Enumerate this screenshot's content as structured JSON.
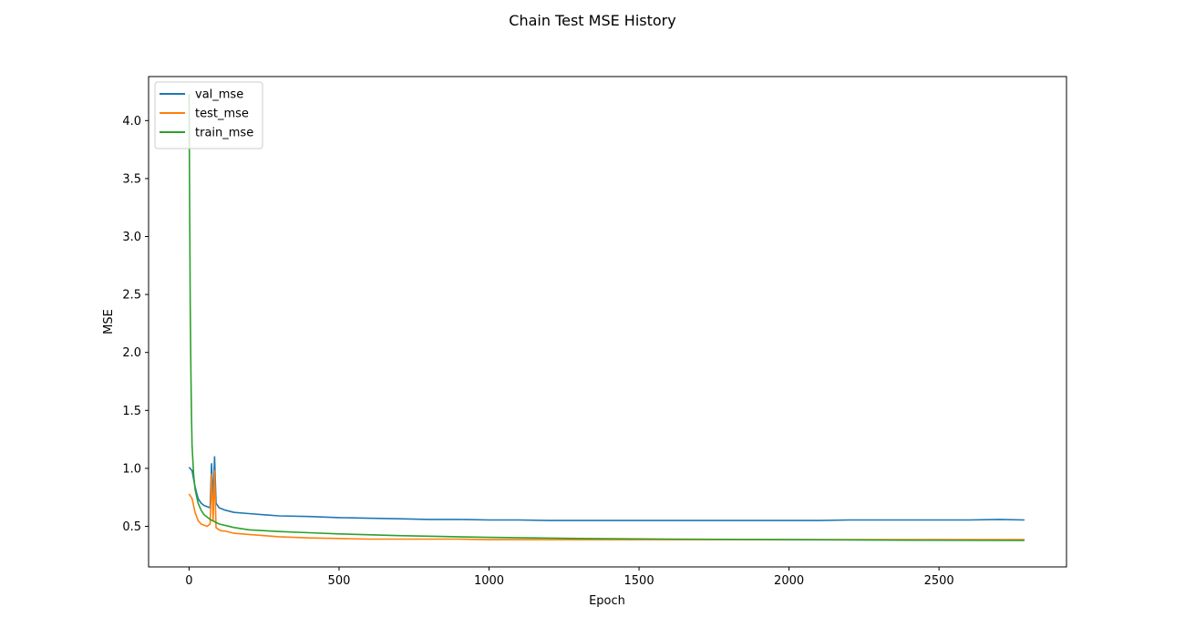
{
  "chart_data": {
    "type": "line",
    "title": "Chain Test MSE History",
    "xlabel": "Epoch",
    "ylabel": "MSE",
    "xlim": [
      -135,
      2925
    ],
    "ylim": [
      0.15,
      4.38
    ],
    "x_ticks": [
      0,
      500,
      1000,
      1500,
      2000,
      2500
    ],
    "y_ticks": [
      0.5,
      1.0,
      1.5,
      2.0,
      2.5,
      3.0,
      3.5,
      4.0
    ],
    "x_tick_labels": [
      "0",
      "500",
      "1000",
      "1500",
      "2000",
      "2500"
    ],
    "y_tick_labels": [
      "0.5",
      "1.0",
      "1.5",
      "2.0",
      "2.5",
      "3.0",
      "3.5",
      "4.0"
    ],
    "grid": false,
    "legend_position": "upper-left",
    "series": [
      {
        "name": "val_mse",
        "color": "#1f77b4",
        "x": [
          0,
          10,
          20,
          30,
          40,
          50,
          60,
          70,
          75,
          80,
          85,
          90,
          100,
          110,
          120,
          150,
          200,
          250,
          300,
          400,
          500,
          600,
          700,
          800,
          900,
          1000,
          1100,
          1200,
          1300,
          1400,
          1500,
          1600,
          1700,
          1800,
          1900,
          2000,
          2100,
          2200,
          2300,
          2400,
          2500,
          2600,
          2700,
          2785
        ],
        "y": [
          1.01,
          0.98,
          0.84,
          0.74,
          0.7,
          0.68,
          0.67,
          0.66,
          1.04,
          0.72,
          1.1,
          0.7,
          0.66,
          0.65,
          0.64,
          0.62,
          0.61,
          0.6,
          0.59,
          0.585,
          0.575,
          0.57,
          0.565,
          0.56,
          0.56,
          0.555,
          0.555,
          0.55,
          0.55,
          0.55,
          0.55,
          0.55,
          0.55,
          0.55,
          0.55,
          0.55,
          0.55,
          0.555,
          0.555,
          0.555,
          0.555,
          0.555,
          0.56,
          0.555
        ]
      },
      {
        "name": "test_mse",
        "color": "#ff7f0e",
        "x": [
          0,
          10,
          20,
          30,
          40,
          50,
          60,
          70,
          75,
          80,
          85,
          90,
          100,
          110,
          120,
          150,
          200,
          250,
          300,
          400,
          500,
          600,
          700,
          800,
          900,
          1000,
          1100,
          1200,
          1300,
          1400,
          1500,
          1600,
          1700,
          1800,
          1900,
          2000,
          2100,
          2200,
          2300,
          2400,
          2500,
          2600,
          2700,
          2785
        ],
        "y": [
          0.78,
          0.74,
          0.62,
          0.55,
          0.52,
          0.51,
          0.5,
          0.52,
          0.95,
          0.55,
          0.98,
          0.49,
          0.47,
          0.46,
          0.46,
          0.44,
          0.43,
          0.42,
          0.41,
          0.4,
          0.395,
          0.39,
          0.39,
          0.39,
          0.39,
          0.385,
          0.385,
          0.385,
          0.385,
          0.385,
          0.385,
          0.385,
          0.385,
          0.385,
          0.385,
          0.385,
          0.385,
          0.385,
          0.385,
          0.385,
          0.385,
          0.385,
          0.385,
          0.385
        ]
      },
      {
        "name": "train_mse",
        "color": "#2ca02c",
        "x": [
          0,
          2,
          4,
          6,
          8,
          10,
          15,
          20,
          30,
          40,
          50,
          70,
          100,
          150,
          200,
          300,
          400,
          500,
          700,
          1000,
          1300,
          1600,
          2000,
          2400,
          2785
        ],
        "y": [
          4.23,
          3.2,
          2.4,
          1.85,
          1.45,
          1.2,
          0.95,
          0.82,
          0.7,
          0.64,
          0.6,
          0.56,
          0.52,
          0.49,
          0.47,
          0.455,
          0.445,
          0.435,
          0.42,
          0.405,
          0.395,
          0.39,
          0.385,
          0.38,
          0.378
        ]
      }
    ]
  }
}
